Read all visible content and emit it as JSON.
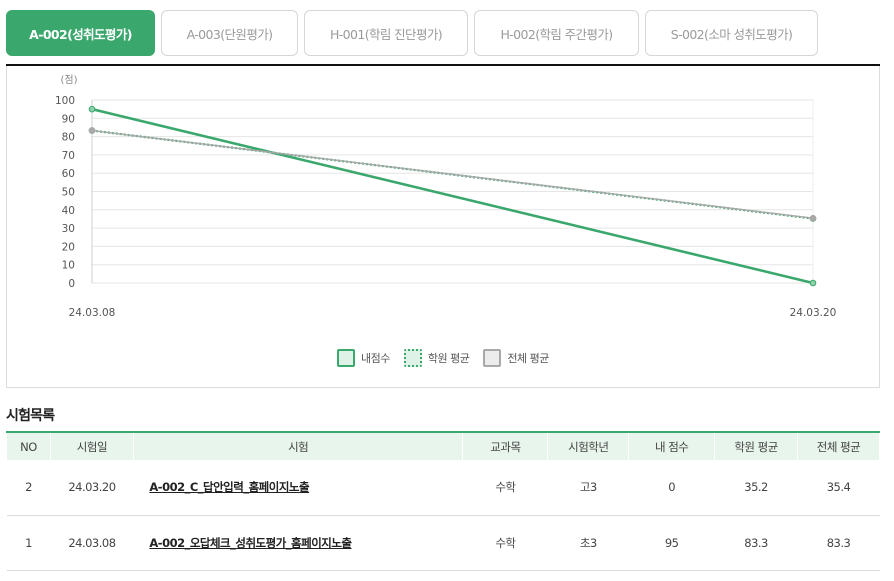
{
  "tabs": [
    {
      "label": "A-002(성취도평가)",
      "active": true
    },
    {
      "label": "A-003(단원평가)",
      "active": false
    },
    {
      "label": "H-001(학림 진단평가)",
      "active": false
    },
    {
      "label": "H-002(학림 주간평가)",
      "active": false
    },
    {
      "label": "S-002(소마 성취도평가)",
      "active": false
    }
  ],
  "colors": {
    "accent": "#3aa76d",
    "grid": "#e5e5e5",
    "axis_text": "#555555"
  },
  "chart_data": {
    "type": "line",
    "y_unit_label": "(점)",
    "categories": [
      "24.03.08",
      "24.03.20"
    ],
    "ylim": [
      0,
      100
    ],
    "y_ticks": [
      0,
      10,
      20,
      30,
      40,
      50,
      60,
      70,
      80,
      90,
      100
    ],
    "series": [
      {
        "name": "내점수",
        "values": [
          95,
          0
        ]
      },
      {
        "name": "학원 평균",
        "values": [
          83.3,
          35.2
        ]
      },
      {
        "name": "전체 평균",
        "values": [
          83.3,
          35.4
        ]
      }
    ]
  },
  "legend": {
    "mine": "내점수",
    "academy": "학원 평균",
    "total": "전체 평균"
  },
  "list": {
    "title": "시험목록",
    "headers": {
      "no": "NO",
      "date": "시험일",
      "exam": "시험",
      "subject": "교과목",
      "grade": "시험학년",
      "my_score": "내 점수",
      "academy_avg": "학원 평균",
      "total_avg": "전체 평균"
    },
    "rows": [
      {
        "no": "2",
        "date": "24.03.20",
        "exam": "A-002_C_답안입력_홈페이지노출",
        "subject": "수학",
        "grade": "고3",
        "my_score": "0",
        "academy_avg": "35.2",
        "total_avg": "35.4"
      },
      {
        "no": "1",
        "date": "24.03.08",
        "exam": "A-002_오답체크_성취도평가_홈페이지노출",
        "subject": "수학",
        "grade": "초3",
        "my_score": "95",
        "academy_avg": "83.3",
        "total_avg": "83.3"
      }
    ]
  }
}
